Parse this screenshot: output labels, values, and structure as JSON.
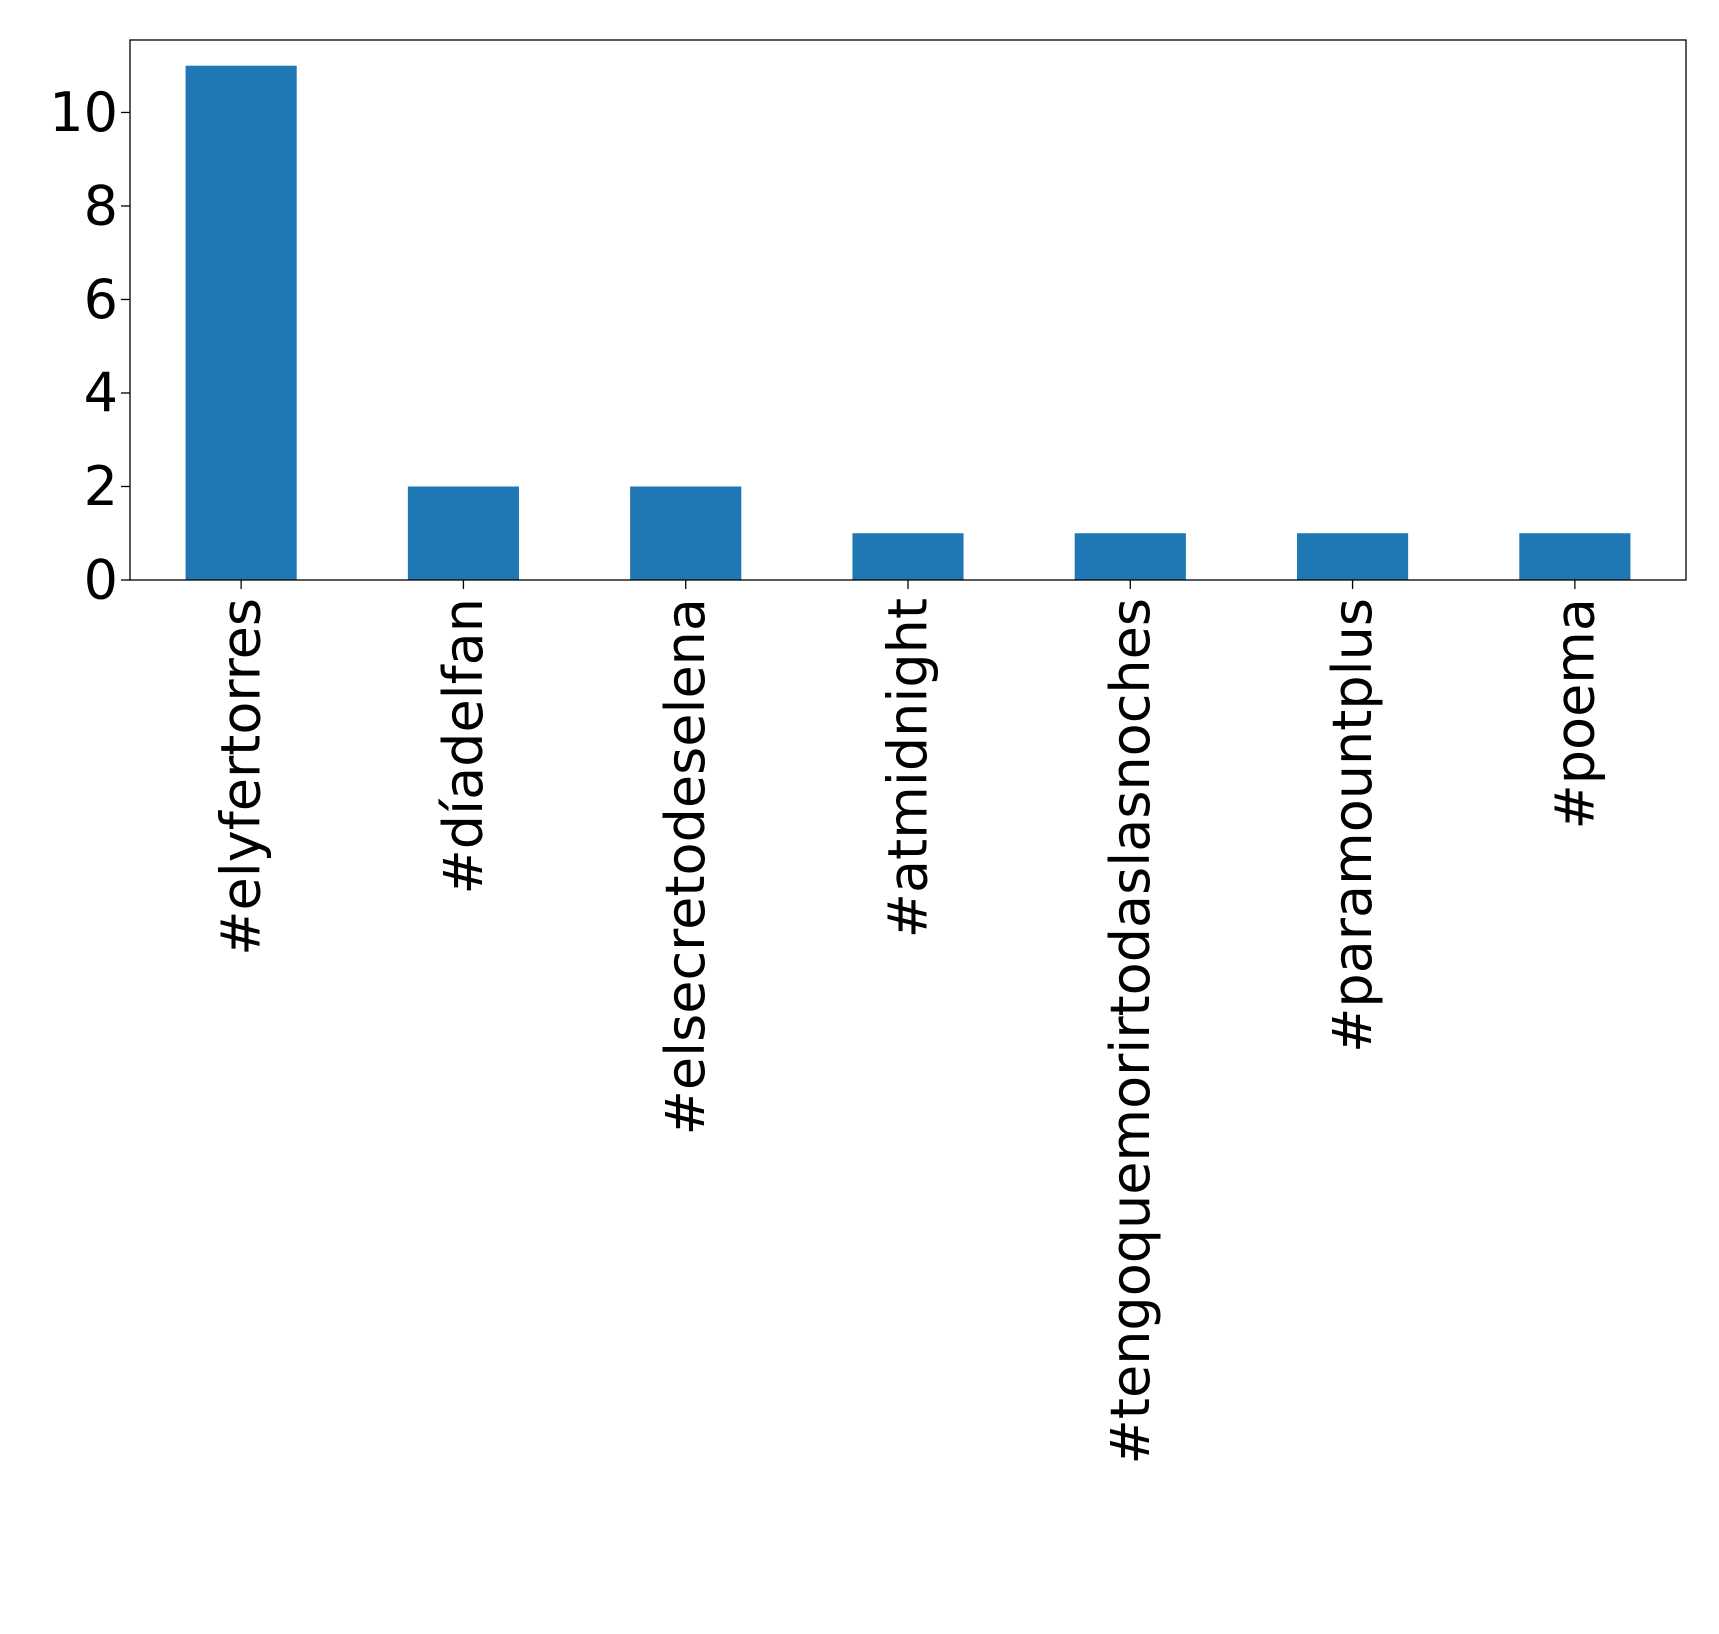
{
  "chart_data": {
    "type": "bar",
    "title": "",
    "xlabel": "",
    "ylabel": "",
    "categories": [
      "#elyfertorres",
      "#díadelfan",
      "#elsecretodeselena",
      "#atmidnight",
      "#tengoquemorirtodaslasnoches",
      "#paramountplus",
      "#poema"
    ],
    "values": [
      11,
      2,
      2,
      1,
      1,
      1,
      1
    ],
    "ylim": [
      0,
      11.55
    ],
    "yticks": [
      0,
      2,
      4,
      6,
      8,
      10
    ],
    "bar_color": "#1f77b4",
    "grid": false,
    "legend": "none"
  }
}
